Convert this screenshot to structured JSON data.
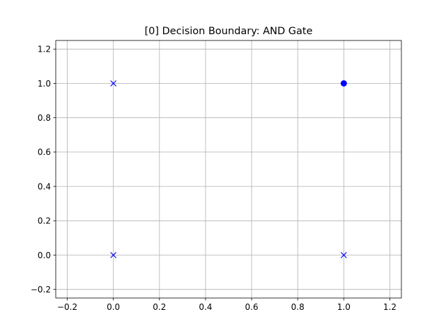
{
  "chart_data": {
    "type": "scatter",
    "title": "[0] Decision Boundary: AND Gate",
    "xlabel": "",
    "ylabel": "",
    "xlim": [
      -0.25,
      1.25
    ],
    "ylim": [
      -0.25,
      1.25
    ],
    "xticks": [
      "−0.2",
      "0.0",
      "0.2",
      "0.4",
      "0.6",
      "0.8",
      "1.0",
      "1.2"
    ],
    "yticks": [
      "−0.2",
      "0.0",
      "0.2",
      "0.4",
      "0.6",
      "0.8",
      "1.0",
      "1.2"
    ],
    "xtick_values": [
      -0.2,
      0.0,
      0.2,
      0.4,
      0.6,
      0.8,
      1.0,
      1.2
    ],
    "ytick_values": [
      -0.2,
      0.0,
      0.2,
      0.4,
      0.6,
      0.8,
      1.0,
      1.2
    ],
    "grid": true,
    "points": [
      {
        "x": 0,
        "y": 0,
        "marker": "x",
        "class": 0
      },
      {
        "x": 0,
        "y": 1,
        "marker": "x",
        "class": 0
      },
      {
        "x": 1,
        "y": 0,
        "marker": "x",
        "class": 0
      },
      {
        "x": 1,
        "y": 1,
        "marker": "o",
        "class": 1
      }
    ],
    "marker_color": "#0000ff",
    "grid_color": "#b0b0b0"
  }
}
